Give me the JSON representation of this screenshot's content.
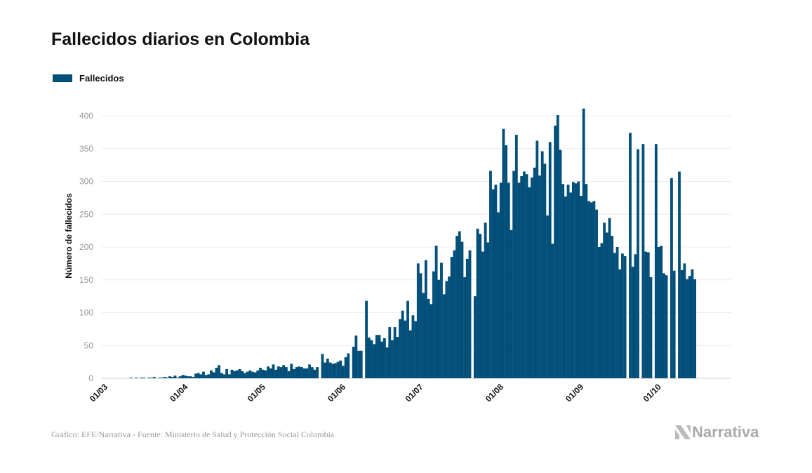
{
  "chart_data": {
    "type": "bar",
    "title": "Fallecidos diarios en Colombia",
    "xlabel": "",
    "ylabel": "Número de fallecidos",
    "ylim": [
      0,
      420
    ],
    "yticks": [
      0,
      50,
      100,
      150,
      200,
      250,
      300,
      350,
      400
    ],
    "grid": true,
    "legend_position": "top-left",
    "start_date": "01/03",
    "x_tick_labels": [
      {
        "label": "01/03",
        "day_index": 0
      },
      {
        "label": "01/04",
        "day_index": 31
      },
      {
        "label": "01/05",
        "day_index": 61
      },
      {
        "label": "01/06",
        "day_index": 92
      },
      {
        "label": "01/07",
        "day_index": 122
      },
      {
        "label": "01/08",
        "day_index": 153
      },
      {
        "label": "01/09",
        "day_index": 184
      },
      {
        "label": "01/10",
        "day_index": 214
      }
    ],
    "series": [
      {
        "name": "Fallecidos",
        "color": "#02507a",
        "values": [
          0,
          0,
          0,
          0,
          0,
          0,
          0,
          0,
          0,
          0,
          1,
          0,
          1,
          0,
          1,
          1,
          0,
          1,
          1,
          2,
          0,
          1,
          1,
          2,
          1,
          3,
          2,
          4,
          1,
          3,
          5,
          4,
          3,
          3,
          2,
          7,
          8,
          6,
          10,
          5,
          6,
          12,
          9,
          16,
          20,
          8,
          6,
          14,
          6,
          13,
          11,
          12,
          14,
          11,
          8,
          10,
          12,
          10,
          9,
          12,
          16,
          13,
          12,
          18,
          15,
          21,
          13,
          18,
          17,
          20,
          17,
          11,
          22,
          14,
          17,
          18,
          17,
          15,
          15,
          21,
          17,
          13,
          17,
          null,
          37,
          24,
          30,
          24,
          22,
          23,
          25,
          27,
          19,
          32,
          38,
          null,
          48,
          65,
          42,
          42,
          null,
          118,
          62,
          58,
          52,
          66,
          66,
          56,
          61,
          47,
          78,
          58,
          78,
          63,
          90,
          103,
          88,
          118,
          73,
          96,
          87,
          175,
          160,
          130,
          180,
          121,
          113,
          163,
          202,
          150,
          176,
          128,
          148,
          155,
          185,
          195,
          217,
          224,
          208,
          154,
          182,
          195,
          null,
          125,
          228,
          220,
          193,
          237,
          207,
          316,
          288,
          295,
          253,
          298,
          380,
          355,
          298,
          226,
          316,
          371,
          298,
          308,
          315,
          311,
          291,
          306,
          321,
          362,
          309,
          346,
          327,
          248,
          360,
          205,
          385,
          401,
          348,
          296,
          277,
          295,
          283,
          299,
          297,
          300,
          278,
          411,
          296,
          270,
          268,
          270,
          257,
          200,
          206,
          237,
          222,
          244,
          217,
          191,
          200,
          166,
          190,
          186,
          null,
          374,
          170,
          189,
          349,
          null,
          357,
          193,
          192,
          154,
          null,
          357,
          200,
          202,
          160,
          157,
          null,
          305,
          164,
          null,
          315,
          165,
          175,
          151,
          156,
          166,
          151
        ]
      }
    ]
  },
  "legend": {
    "label": "Fallecidos"
  },
  "footer": {
    "source": "Gráfico: EFE/Narrativa - Fuente: Ministerio de Salud y Protección Social Colombia",
    "logo": "Narrativa"
  }
}
